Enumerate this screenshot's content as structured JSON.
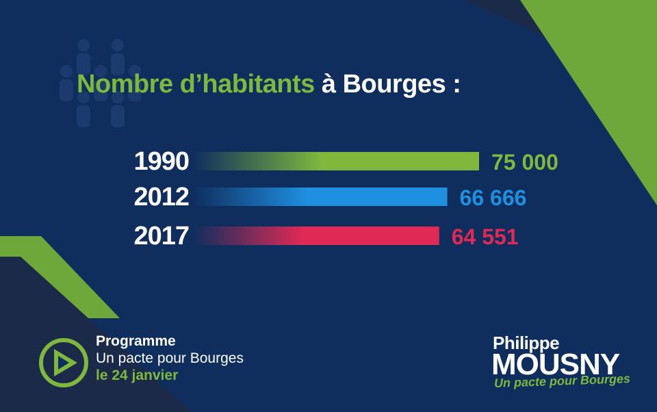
{
  "title": {
    "part_green": "Nombre d’habitants",
    "part_white": "à Bourges :"
  },
  "chart_data": {
    "type": "bar",
    "orientation": "horizontal",
    "categories": [
      "1990",
      "2012",
      "2017"
    ],
    "values": [
      75000,
      66666,
      64551
    ],
    "value_labels": [
      "75 000",
      "66 666",
      "64 551"
    ],
    "colors": [
      "#7fb83d",
      "#1f8fe0",
      "#e02a55"
    ],
    "title": "Nombre d’habitants à Bourges :",
    "xlabel": "",
    "ylabel": "",
    "grid": false,
    "legend": "none"
  },
  "footer": {
    "line1": "Programme",
    "line2": "Un pacte pour Bourges",
    "line3": "le 24 janvier"
  },
  "logo": {
    "first_name": "Philippe",
    "last_name": "MOUSNY",
    "tagline": "Un pacte pour Bourges"
  },
  "colors": {
    "background": "#0f2e5e",
    "green": "#7fb83d",
    "blue": "#1f8fe0",
    "red": "#e02a55",
    "dark": "#1c2a4a"
  },
  "icons": {
    "people": "people-icon",
    "play": "play-icon"
  }
}
